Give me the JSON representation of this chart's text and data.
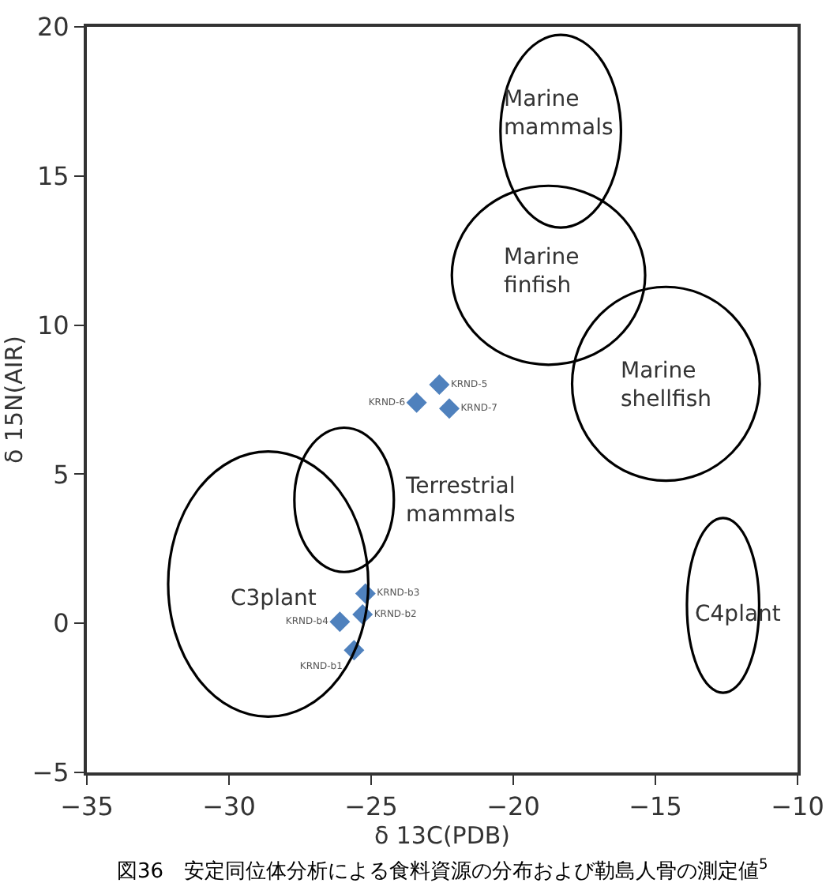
{
  "chart_data": {
    "type": "scatter",
    "xlabel": "δ 13C(PDB)",
    "ylabel": "δ 15N(AIR)",
    "xlim": [
      -35,
      -10
    ],
    "xticks": [
      -35,
      -30,
      -25,
      -20,
      -15,
      -10
    ],
    "ylim": [
      -5,
      20
    ],
    "yticks": [
      -5,
      0,
      5,
      10,
      15,
      20
    ],
    "series": [
      {
        "marker": "diamond",
        "color": "#4f81bd",
        "x": [
          -22.6,
          -23.4,
          -22.25,
          -25.2,
          -25.3,
          -26.1,
          -25.6
        ],
        "values": [
          8.0,
          7.4,
          7.2,
          1.0,
          0.3,
          0.05,
          -0.9
        ],
        "value_labels": [
          "KRND-5",
          "KRND-6",
          "KRND-7",
          "KRND-b3",
          "KRND-b2",
          "KRND-b4",
          "KRND-b1"
        ]
      }
    ],
    "annotations": [
      "Marine\nmammals",
      "Marine\nfinfish",
      "Marine\nshellfish",
      "Terrestrial\nmammals",
      "C3plant",
      "C4plant",
      "図36　安定同位体分析による食料資源の分布および勒島人骨の測定値$^{5}$"
    ]
  }
}
